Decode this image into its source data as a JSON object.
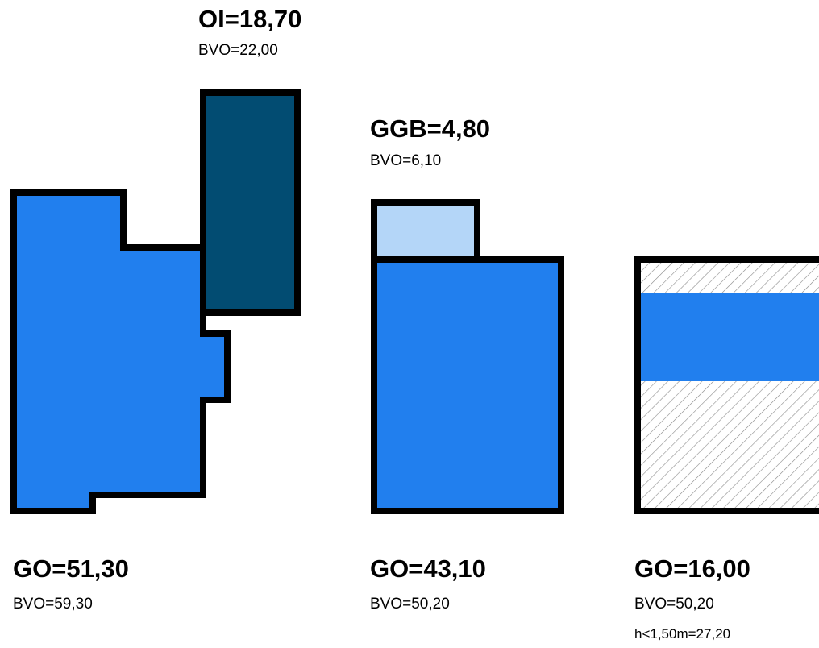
{
  "colors": {
    "main_floor": "#217fee",
    "attic_dark": "#024c72",
    "garage_light": "#b4d6f8",
    "outline": "#000000",
    "hatch": "#8a8a8a"
  },
  "plan_left": {
    "attic_label": "OI=18,70",
    "attic_bvo": "BVO=22,00",
    "ground_label": "GO=51,30",
    "ground_bvo": "BVO=59,30"
  },
  "plan_middle": {
    "garage_label": "GGB=4,80",
    "garage_bvo": "BVO=6,10",
    "ground_label": "GO=43,10",
    "ground_bvo": "BVO=50,20"
  },
  "plan_right": {
    "ground_label": "GO=16,00",
    "ground_bvo": "BVO=50,20",
    "low_height": "h<1,50m=27,20"
  }
}
